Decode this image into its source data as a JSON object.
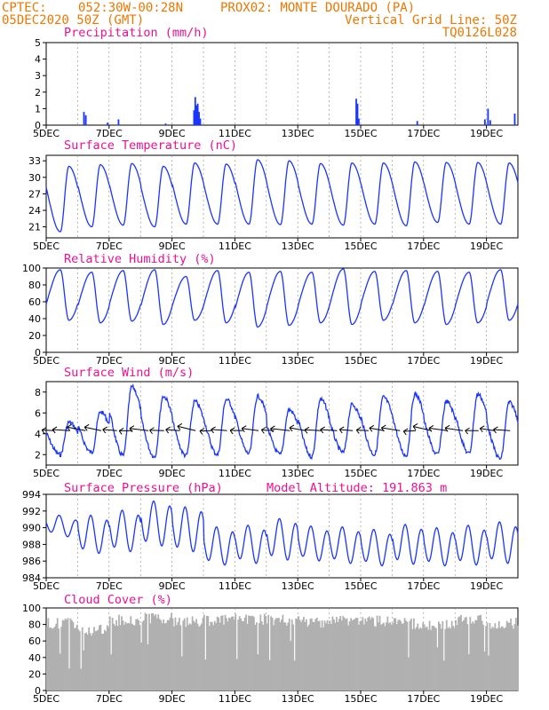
{
  "header": {
    "source": "CPTEC:",
    "coords": "052:30W-00:28N",
    "station": "PROX02: MONTE DOURADO (PA)",
    "run": "05DEC2020 50Z (GMT)",
    "grid_note": "Vertical Grid Line: 50Z",
    "code": "TQ0126L028",
    "model_altitude": "Model Altitude: 191.863 m"
  },
  "colors": {
    "line": "#1a35ff",
    "text_header": "#ee7700",
    "text_title": "#ee1090",
    "cloud": "#b0b0b0"
  },
  "x_days": [
    "5DEC",
    "7DEC",
    "9DEC",
    "11DEC",
    "13DEC",
    "15DEC",
    "17DEC",
    "19DEC"
  ],
  "chart_data": [
    {
      "type": "bar",
      "title": "Precipitation (mm/h)",
      "ylim": [
        0,
        5
      ],
      "yticks": [
        "0",
        "1",
        "2",
        "3",
        "4",
        "5"
      ],
      "x_unit": "day of Dec 2020",
      "events": [
        {
          "x": 6.2,
          "y": 0.8
        },
        {
          "x": 6.26,
          "y": 0.6
        },
        {
          "x": 6.95,
          "y": 0.15
        },
        {
          "x": 7.3,
          "y": 0.35
        },
        {
          "x": 8.8,
          "y": 0.1
        },
        {
          "x": 9.7,
          "y": 0.9
        },
        {
          "x": 9.74,
          "y": 1.7
        },
        {
          "x": 9.78,
          "y": 1.2
        },
        {
          "x": 9.82,
          "y": 1.3
        },
        {
          "x": 9.86,
          "y": 0.8
        },
        {
          "x": 9.9,
          "y": 0.4
        },
        {
          "x": 14.86,
          "y": 1.6
        },
        {
          "x": 14.9,
          "y": 1.3
        },
        {
          "x": 14.94,
          "y": 0.4
        },
        {
          "x": 16.8,
          "y": 0.25
        },
        {
          "x": 18.95,
          "y": 0.35
        },
        {
          "x": 19.05,
          "y": 1.0
        },
        {
          "x": 19.12,
          "y": 0.3
        },
        {
          "x": 19.9,
          "y": 0.7
        }
      ]
    },
    {
      "type": "line",
      "title": "Surface Temperature (nC)",
      "ylim": [
        19,
        34
      ],
      "yticks": [
        "21",
        "24",
        "27",
        "30",
        "33"
      ],
      "daily_max": [
        32.0,
        32.3,
        32.5,
        32.0,
        32.6,
        32.4,
        33.2,
        33.0,
        32.5,
        32.6,
        32.6,
        32.8,
        32.7,
        32.7,
        32.6
      ],
      "daily_min": [
        20.1,
        21.0,
        21.3,
        21.0,
        21.5,
        21.5,
        21.5,
        21.4,
        21.5,
        21.3,
        21.5,
        21.2,
        21.8,
        21.5,
        21.5
      ]
    },
    {
      "type": "line",
      "title": "Relative Humidity (%)",
      "ylim": [
        0,
        100
      ],
      "yticks": [
        "0",
        "20",
        "40",
        "60",
        "80",
        "100"
      ],
      "daily_min": [
        38,
        35,
        37,
        33,
        38,
        35,
        30,
        32,
        35,
        33,
        38,
        35,
        33,
        35,
        38
      ],
      "daily_max": [
        98,
        95,
        97,
        98,
        90,
        97,
        95,
        96,
        95,
        99,
        96,
        97,
        96,
        95,
        98
      ]
    },
    {
      "type": "line",
      "title": "Surface Wind (m/s)",
      "ylim": [
        1,
        9
      ],
      "yticks": [
        "2",
        "4",
        "6",
        "8"
      ],
      "daily_max": [
        5.1,
        6.1,
        8.5,
        7.6,
        7.1,
        7.3,
        7.6,
        6.3,
        7.3,
        6.8,
        7.5,
        7.8,
        7.1,
        7.8,
        7.0
      ],
      "daily_min": [
        2.0,
        2.2,
        1.9,
        1.8,
        1.9,
        2.0,
        2.1,
        2.0,
        1.8,
        2.2,
        2.0,
        1.9,
        2.0,
        2.1,
        1.6
      ]
    },
    {
      "type": "line",
      "title": "Surface Pressure (hPa)",
      "ylim": [
        984,
        994
      ],
      "yticks": [
        "984",
        "986",
        "988",
        "990",
        "992",
        "994"
      ],
      "daily_mean": [
        990.2,
        989.2,
        989.6,
        990.5,
        989.8,
        987.8,
        988.0,
        988.6,
        988.1,
        987.9,
        987.6,
        988.0,
        987.7,
        987.9,
        988.2
      ],
      "amplitude": [
        1.0,
        2.0,
        2.2,
        2.4,
        2.4,
        2.0,
        2.0,
        2.2,
        1.8,
        1.9,
        1.9,
        2.1,
        2.0,
        2.1,
        2.2
      ]
    },
    {
      "type": "bar",
      "title": "Cloud Cover (%)",
      "ylim": [
        0,
        100
      ],
      "yticks": [
        "0",
        "20",
        "40",
        "60",
        "80",
        "100"
      ],
      "daily_level": [
        88,
        80,
        92,
        95,
        90,
        92,
        93,
        92,
        90,
        92,
        91,
        88,
        86,
        92,
        88
      ]
    }
  ]
}
